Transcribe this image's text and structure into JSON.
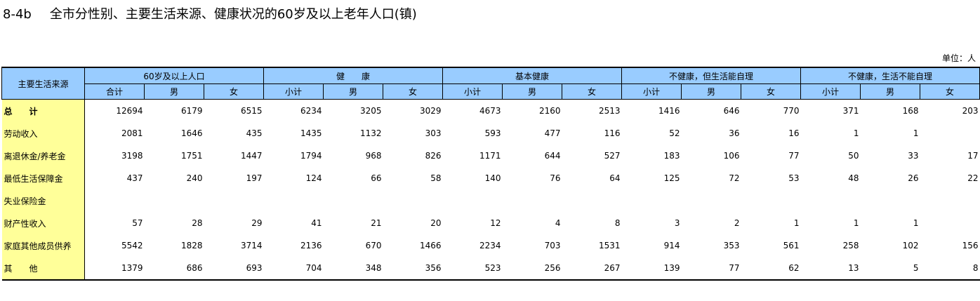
{
  "title": {
    "code": "8-4b",
    "text": "全市分性别、主要生活来源、健康状况的60岁及以上老年人口(镇)"
  },
  "unit": "单位：人",
  "table": {
    "row_header": "主要生活来源",
    "groups": [
      "60岁及以上人口",
      "健　　康",
      "基本健康",
      "不健康，但生活能自理",
      "不健康，生活不能自理"
    ],
    "subheaders": [
      "合计",
      "男",
      "女",
      "小计",
      "男",
      "女",
      "小计",
      "男",
      "女",
      "小计",
      "男",
      "女",
      "小计",
      "男",
      "女"
    ],
    "rows": [
      {
        "label": "总　　计",
        "values": [
          "12694",
          "6179",
          "6515",
          "6234",
          "3205",
          "3029",
          "4673",
          "2160",
          "2513",
          "1416",
          "646",
          "770",
          "371",
          "168",
          "203"
        ]
      },
      {
        "label": "劳动收入",
        "values": [
          "2081",
          "1646",
          "435",
          "1435",
          "1132",
          "303",
          "593",
          "477",
          "116",
          "52",
          "36",
          "16",
          "1",
          "1",
          ""
        ]
      },
      {
        "label": "离退休金/养老金",
        "values": [
          "3198",
          "1751",
          "1447",
          "1794",
          "968",
          "826",
          "1171",
          "644",
          "527",
          "183",
          "106",
          "77",
          "50",
          "33",
          "17"
        ]
      },
      {
        "label": "最低生活保障金",
        "values": [
          "437",
          "240",
          "197",
          "124",
          "66",
          "58",
          "140",
          "76",
          "64",
          "125",
          "72",
          "53",
          "48",
          "26",
          "22"
        ]
      },
      {
        "label": "失业保险金",
        "values": [
          "",
          "",
          "",
          "",
          "",
          "",
          "",
          "",
          "",
          "",
          "",
          "",
          "",
          "",
          ""
        ]
      },
      {
        "label": "财产性收入",
        "values": [
          "57",
          "28",
          "29",
          "41",
          "21",
          "20",
          "12",
          "4",
          "8",
          "3",
          "2",
          "1",
          "1",
          "1",
          ""
        ]
      },
      {
        "label": "家庭其他成员供养",
        "values": [
          "5542",
          "1828",
          "3714",
          "2136",
          "670",
          "1466",
          "2234",
          "703",
          "1531",
          "914",
          "353",
          "561",
          "258",
          "102",
          "156"
        ]
      },
      {
        "label": "其　　他",
        "values": [
          "1379",
          "686",
          "693",
          "704",
          "348",
          "356",
          "523",
          "256",
          "267",
          "139",
          "77",
          "62",
          "13",
          "5",
          "8"
        ]
      }
    ]
  },
  "colors": {
    "header_bg": "#99ccff",
    "label_bg": "#ffff99"
  }
}
